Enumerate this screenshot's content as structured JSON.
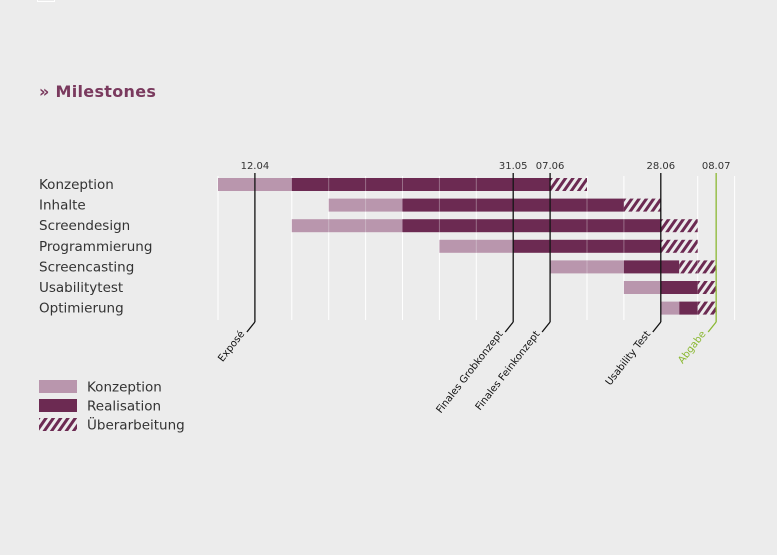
{
  "title": "» Milestones",
  "colors": {
    "konzeption": "#b996ad",
    "realisation": "#6c2a52",
    "hatch": "#6c2a52",
    "abgabe": "#8ab832",
    "milestone_line": "#111111",
    "text": "#333333",
    "grid": "#ffffff"
  },
  "chart_data": {
    "type": "gantt",
    "time_unit": "week",
    "tasks": [
      {
        "name": "Konzeption",
        "phases": [
          {
            "type": "Konzeption",
            "start": 0,
            "end": 2
          },
          {
            "type": "Realisation",
            "start": 2,
            "end": 9
          },
          {
            "type": "Überarbeitung",
            "start": 9,
            "end": 10
          }
        ]
      },
      {
        "name": "Inhalte",
        "phases": [
          {
            "type": "Konzeption",
            "start": 3,
            "end": 5
          },
          {
            "type": "Realisation",
            "start": 5,
            "end": 11
          },
          {
            "type": "Überarbeitung",
            "start": 11,
            "end": 12
          }
        ]
      },
      {
        "name": "Screendesign",
        "phases": [
          {
            "type": "Konzeption",
            "start": 2,
            "end": 5
          },
          {
            "type": "Realisation",
            "start": 5,
            "end": 12
          },
          {
            "type": "Überarbeitung",
            "start": 12,
            "end": 13
          }
        ]
      },
      {
        "name": "Programmierung",
        "phases": [
          {
            "type": "Konzeption",
            "start": 6,
            "end": 8
          },
          {
            "type": "Realisation",
            "start": 8,
            "end": 12
          },
          {
            "type": "Überarbeitung",
            "start": 12,
            "end": 13
          }
        ]
      },
      {
        "name": "Screencasting",
        "phases": [
          {
            "type": "Konzeption",
            "start": 9,
            "end": 11
          },
          {
            "type": "Realisation",
            "start": 11,
            "end": 12.5
          },
          {
            "type": "Überarbeitung",
            "start": 12.5,
            "end": 13.5
          }
        ]
      },
      {
        "name": "Usabilitytest",
        "phases": [
          {
            "type": "Konzeption",
            "start": 11,
            "end": 12
          },
          {
            "type": "Realisation",
            "start": 12,
            "end": 13
          },
          {
            "type": "Überarbeitung",
            "start": 13,
            "end": 13.5
          }
        ]
      },
      {
        "name": "Optimierung",
        "phases": [
          {
            "type": "Konzeption",
            "start": 12,
            "end": 12.5
          },
          {
            "type": "Realisation",
            "start": 12.5,
            "end": 13
          },
          {
            "type": "Überarbeitung",
            "start": 13,
            "end": 13.5
          }
        ]
      }
    ],
    "milestones": [
      {
        "date": "12.04",
        "name": "Exposé",
        "at": 1,
        "style": "black"
      },
      {
        "date": "31.05",
        "name": "Finales Grobkonzept",
        "at": 8,
        "style": "black"
      },
      {
        "date": "07.06",
        "name": "Finales Feinkonzept",
        "at": 9,
        "style": "black"
      },
      {
        "date": "28.06",
        "name": "Usability Test",
        "at": 12,
        "style": "black"
      },
      {
        "date": "08.07",
        "name": "Abgabe",
        "at": 13.5,
        "style": "green"
      }
    ],
    "legend": [
      {
        "label": "Konzeption",
        "type": "Konzeption"
      },
      {
        "label": "Realisation",
        "type": "Realisation"
      },
      {
        "label": "Überarbeitung",
        "type": "Überarbeitung"
      }
    ],
    "legend_position": "bottom-left",
    "grid": true
  }
}
